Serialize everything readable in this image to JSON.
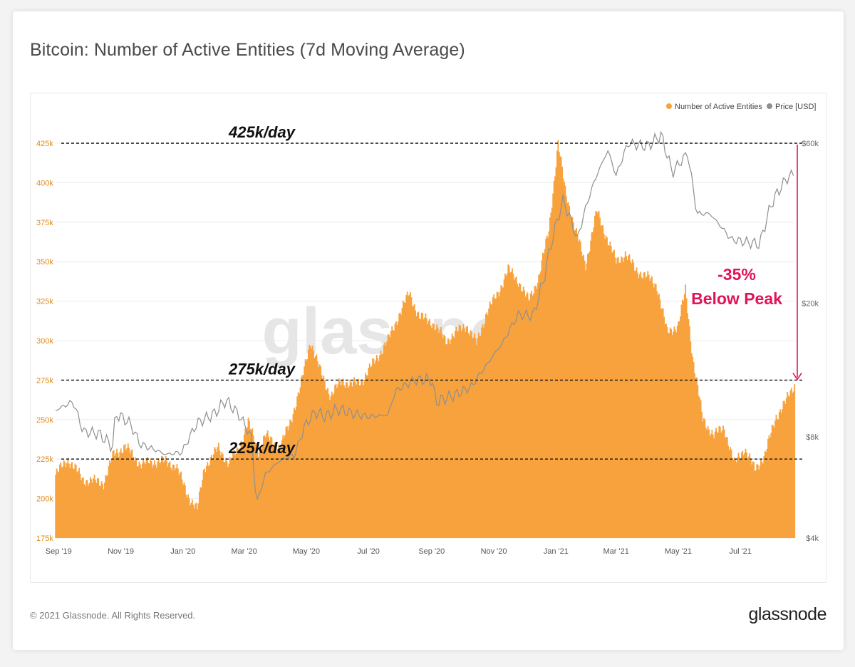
{
  "title": "Bitcoin: Number of Active Entities (7d Moving Average)",
  "footer": {
    "copyright": "© 2021 Glassnode. All Rights Reserved.",
    "logo": "glassnode"
  },
  "watermark": "glassnode",
  "colors": {
    "bars": "#f7a23d",
    "price": "#8f8f8f",
    "left_axis": "#e08a1e",
    "annotation": "#e0145a",
    "reference_line": "#111111"
  },
  "chart_data": {
    "type": "bar",
    "title": "Bitcoin: Number of Active Entities (7d Moving Average)",
    "x_ticks": [
      "Sep '19",
      "Nov '19",
      "Jan '20",
      "Mar '20",
      "May '20",
      "Jul '20",
      "Sep '20",
      "Nov '20",
      "Jan '21",
      "Mar '21",
      "May '21",
      "Jul '21"
    ],
    "x_range": [
      "2019-08-29",
      "2021-08-23"
    ],
    "y_left": {
      "ylim": [
        175000,
        425000
      ],
      "tick_values": [
        175000,
        200000,
        225000,
        250000,
        275000,
        300000,
        325000,
        350000,
        375000,
        400000,
        425000
      ],
      "tick_labels": [
        "175k",
        "200k",
        "225k",
        "250k",
        "275k",
        "300k",
        "325k",
        "350k",
        "375k",
        "400k",
        "425k"
      ]
    },
    "y_right": {
      "scale": "log",
      "ylim": [
        4000,
        60000
      ],
      "tick_values": [
        4000,
        8000,
        20000,
        60000
      ],
      "tick_labels": [
        "$4k",
        "$8k",
        "$20k",
        "$60k"
      ]
    },
    "legend": {
      "placement": "top-right",
      "entries": [
        {
          "name": "Number of Active Entities",
          "color": "#f7a23d"
        },
        {
          "name": "Price [USD]",
          "color": "#8f8f8f"
        }
      ]
    },
    "series": [
      {
        "name": "Number of Active Entities",
        "axis": "left",
        "type": "bar",
        "points": [
          [
            "2019-08-29",
            215000
          ],
          [
            "2019-09-10",
            225000
          ],
          [
            "2019-09-25",
            212000
          ],
          [
            "2019-10-15",
            210000
          ],
          [
            "2019-10-25",
            228000
          ],
          [
            "2019-11-05",
            233000
          ],
          [
            "2019-11-20",
            222000
          ],
          [
            "2019-12-10",
            224000
          ],
          [
            "2019-12-25",
            221000
          ],
          [
            "2020-01-05",
            203000
          ],
          [
            "2020-01-15",
            193000
          ],
          [
            "2020-01-22",
            220000
          ],
          [
            "2020-02-05",
            232000
          ],
          [
            "2020-02-15",
            222000
          ],
          [
            "2020-02-25",
            232000
          ],
          [
            "2020-03-05",
            248000
          ],
          [
            "2020-03-15",
            230000
          ],
          [
            "2020-03-22",
            240000
          ],
          [
            "2020-04-05",
            232000
          ],
          [
            "2020-04-15",
            248000
          ],
          [
            "2020-04-25",
            270000
          ],
          [
            "2020-05-05",
            300000
          ],
          [
            "2020-05-15",
            280000
          ],
          [
            "2020-05-25",
            265000
          ],
          [
            "2020-06-05",
            275000
          ],
          [
            "2020-06-15",
            272000
          ],
          [
            "2020-06-25",
            275000
          ],
          [
            "2020-07-05",
            285000
          ],
          [
            "2020-07-20",
            300000
          ],
          [
            "2020-08-01",
            318000
          ],
          [
            "2020-08-10",
            330000
          ],
          [
            "2020-08-20",
            315000
          ],
          [
            "2020-09-01",
            312000
          ],
          [
            "2020-09-15",
            300000
          ],
          [
            "2020-09-25",
            305000
          ],
          [
            "2020-10-05",
            310000
          ],
          [
            "2020-10-15",
            298000
          ],
          [
            "2020-10-25",
            318000
          ],
          [
            "2020-11-05",
            330000
          ],
          [
            "2020-11-15",
            345000
          ],
          [
            "2020-11-25",
            338000
          ],
          [
            "2020-12-05",
            325000
          ],
          [
            "2020-12-15",
            340000
          ],
          [
            "2020-12-25",
            370000
          ],
          [
            "2021-01-03",
            425000
          ],
          [
            "2021-01-10",
            395000
          ],
          [
            "2021-01-20",
            370000
          ],
          [
            "2021-01-30",
            348000
          ],
          [
            "2021-02-10",
            382000
          ],
          [
            "2021-02-20",
            365000
          ],
          [
            "2021-03-01",
            350000
          ],
          [
            "2021-03-10",
            355000
          ],
          [
            "2021-03-20",
            345000
          ],
          [
            "2021-04-01",
            340000
          ],
          [
            "2021-04-10",
            335000
          ],
          [
            "2021-04-20",
            305000
          ],
          [
            "2021-05-01",
            310000
          ],
          [
            "2021-05-08",
            332000
          ],
          [
            "2021-05-15",
            290000
          ],
          [
            "2021-05-25",
            250000
          ],
          [
            "2021-06-05",
            240000
          ],
          [
            "2021-06-15",
            245000
          ],
          [
            "2021-06-25",
            222000
          ],
          [
            "2021-07-05",
            232000
          ],
          [
            "2021-07-15",
            218000
          ],
          [
            "2021-07-25",
            228000
          ],
          [
            "2021-08-05",
            252000
          ],
          [
            "2021-08-15",
            262000
          ],
          [
            "2021-08-23",
            272000
          ]
        ]
      },
      {
        "name": "Price [USD]",
        "axis": "right",
        "type": "line",
        "points": [
          [
            "2019-08-29",
            9600
          ],
          [
            "2019-09-15",
            10200
          ],
          [
            "2019-09-25",
            8300
          ],
          [
            "2019-10-10",
            8200
          ],
          [
            "2019-10-24",
            7500
          ],
          [
            "2019-10-27",
            9400
          ],
          [
            "2019-11-10",
            8800
          ],
          [
            "2019-11-20",
            7600
          ],
          [
            "2019-12-01",
            7400
          ],
          [
            "2019-12-15",
            7100
          ],
          [
            "2019-12-31",
            7200
          ],
          [
            "2020-01-15",
            8800
          ],
          [
            "2020-02-01",
            9400
          ],
          [
            "2020-02-12",
            10300
          ],
          [
            "2020-02-25",
            9300
          ],
          [
            "2020-03-08",
            8000
          ],
          [
            "2020-03-13",
            5000
          ],
          [
            "2020-03-22",
            6200
          ],
          [
            "2020-04-05",
            6800
          ],
          [
            "2020-04-20",
            7100
          ],
          [
            "2020-04-30",
            8700
          ],
          [
            "2020-05-10",
            9500
          ],
          [
            "2020-05-20",
            9200
          ],
          [
            "2020-06-01",
            9700
          ],
          [
            "2020-06-15",
            9400
          ],
          [
            "2020-07-01",
            9200
          ],
          [
            "2020-07-20",
            9300
          ],
          [
            "2020-07-28",
            11000
          ],
          [
            "2020-08-15",
            11800
          ],
          [
            "2020-09-01",
            11900
          ],
          [
            "2020-09-05",
            10200
          ],
          [
            "2020-09-25",
            10700
          ],
          [
            "2020-10-10",
            11300
          ],
          [
            "2020-10-25",
            13100
          ],
          [
            "2020-11-10",
            15300
          ],
          [
            "2020-11-25",
            18500
          ],
          [
            "2020-12-10",
            18400
          ],
          [
            "2020-12-20",
            23500
          ],
          [
            "2021-01-08",
            40500
          ],
          [
            "2021-01-22",
            31000
          ],
          [
            "2021-02-08",
            46500
          ],
          [
            "2021-02-21",
            57000
          ],
          [
            "2021-03-01",
            48000
          ],
          [
            "2021-03-13",
            60000
          ],
          [
            "2021-04-01",
            58800
          ],
          [
            "2021-04-14",
            63500
          ],
          [
            "2021-04-25",
            49000
          ],
          [
            "2021-05-10",
            56000
          ],
          [
            "2021-05-19",
            37000
          ],
          [
            "2021-06-01",
            37000
          ],
          [
            "2021-06-22",
            31000
          ],
          [
            "2021-07-20",
            30000
          ],
          [
            "2021-08-01",
            40000
          ],
          [
            "2021-08-15",
            47000
          ],
          [
            "2021-08-23",
            49000
          ]
        ]
      }
    ],
    "reference_lines": [
      {
        "value": 425000,
        "label": "425k/day"
      },
      {
        "value": 275000,
        "label": "275k/day"
      },
      {
        "value": 225000,
        "label": "225k/day"
      }
    ],
    "annotation": {
      "lines": [
        "-35%",
        "Below Peak"
      ],
      "from_value": 425000,
      "to_value": 275000,
      "color": "#e0145a"
    }
  }
}
